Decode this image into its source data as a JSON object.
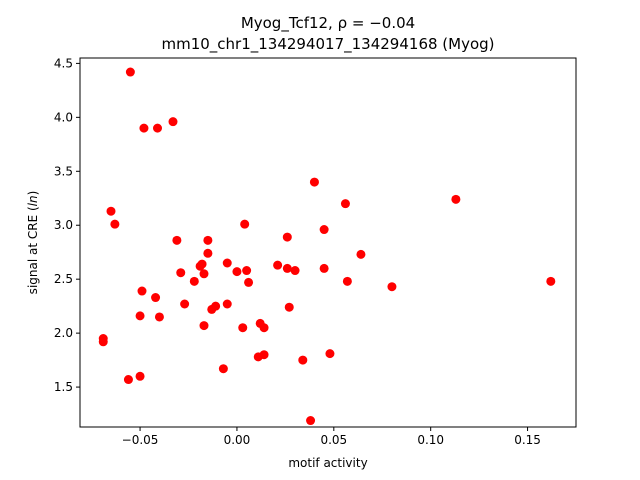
{
  "chart_data": {
    "type": "scatter",
    "title_line1": "Myog_Tcf12, ρ = −0.04",
    "title_line2": "mm10_chr1_134294017_134294168 (Myog)",
    "xlabel": "motif activity",
    "ylabel_prefix": "signal at CRE (",
    "ylabel_italic": "ln",
    "ylabel_suffix": ")",
    "xlim": [
      -0.081,
      0.175
    ],
    "ylim": [
      1.13,
      4.55
    ],
    "xticks": [
      {
        "value": -0.05,
        "label": "−0.05"
      },
      {
        "value": 0.0,
        "label": "0.00"
      },
      {
        "value": 0.05,
        "label": "0.05"
      },
      {
        "value": 0.1,
        "label": "0.10"
      },
      {
        "value": 0.15,
        "label": "0.15"
      }
    ],
    "yticks": [
      {
        "value": 1.5,
        "label": "1.5"
      },
      {
        "value": 2.0,
        "label": "2.0"
      },
      {
        "value": 2.5,
        "label": "2.5"
      },
      {
        "value": 3.0,
        "label": "3.0"
      },
      {
        "value": 3.5,
        "label": "3.5"
      },
      {
        "value": 4.0,
        "label": "4.0"
      },
      {
        "value": 4.5,
        "label": "4.5"
      }
    ],
    "grid": false,
    "marker_color": "#ff0000",
    "points": [
      {
        "x": -0.055,
        "y": 4.42
      },
      {
        "x": -0.048,
        "y": 3.9
      },
      {
        "x": -0.041,
        "y": 3.9
      },
      {
        "x": -0.033,
        "y": 3.96
      },
      {
        "x": -0.065,
        "y": 3.13
      },
      {
        "x": -0.063,
        "y": 3.01
      },
      {
        "x": -0.069,
        "y": 1.95
      },
      {
        "x": -0.069,
        "y": 1.92
      },
      {
        "x": -0.056,
        "y": 1.57
      },
      {
        "x": -0.05,
        "y": 1.6
      },
      {
        "x": -0.05,
        "y": 2.16
      },
      {
        "x": -0.049,
        "y": 2.39
      },
      {
        "x": -0.042,
        "y": 2.33
      },
      {
        "x": -0.04,
        "y": 2.15
      },
      {
        "x": -0.031,
        "y": 2.86
      },
      {
        "x": -0.029,
        "y": 2.56
      },
      {
        "x": -0.027,
        "y": 2.27
      },
      {
        "x": -0.022,
        "y": 2.48
      },
      {
        "x": -0.019,
        "y": 2.62
      },
      {
        "x": -0.018,
        "y": 2.64
      },
      {
        "x": -0.017,
        "y": 2.55
      },
      {
        "x": -0.017,
        "y": 2.07
      },
      {
        "x": -0.015,
        "y": 2.86
      },
      {
        "x": -0.015,
        "y": 2.74
      },
      {
        "x": -0.013,
        "y": 2.22
      },
      {
        "x": -0.011,
        "y": 2.25
      },
      {
        "x": -0.007,
        "y": 1.67
      },
      {
        "x": -0.005,
        "y": 2.65
      },
      {
        "x": -0.005,
        "y": 2.27
      },
      {
        "x": 0.0,
        "y": 2.57
      },
      {
        "x": 0.003,
        "y": 2.05
      },
      {
        "x": 0.004,
        "y": 3.01
      },
      {
        "x": 0.005,
        "y": 2.58
      },
      {
        "x": 0.006,
        "y": 2.47
      },
      {
        "x": 0.011,
        "y": 1.78
      },
      {
        "x": 0.012,
        "y": 2.09
      },
      {
        "x": 0.014,
        "y": 2.05
      },
      {
        "x": 0.014,
        "y": 1.8
      },
      {
        "x": 0.021,
        "y": 2.63
      },
      {
        "x": 0.026,
        "y": 2.89
      },
      {
        "x": 0.026,
        "y": 2.6
      },
      {
        "x": 0.027,
        "y": 2.24
      },
      {
        "x": 0.03,
        "y": 2.58
      },
      {
        "x": 0.034,
        "y": 1.75
      },
      {
        "x": 0.038,
        "y": 1.19
      },
      {
        "x": 0.04,
        "y": 3.4
      },
      {
        "x": 0.045,
        "y": 2.96
      },
      {
        "x": 0.045,
        "y": 2.6
      },
      {
        "x": 0.048,
        "y": 1.81
      },
      {
        "x": 0.056,
        "y": 3.2
      },
      {
        "x": 0.057,
        "y": 2.48
      },
      {
        "x": 0.064,
        "y": 2.73
      },
      {
        "x": 0.08,
        "y": 2.43
      },
      {
        "x": 0.113,
        "y": 3.24
      },
      {
        "x": 0.162,
        "y": 2.48
      }
    ]
  }
}
